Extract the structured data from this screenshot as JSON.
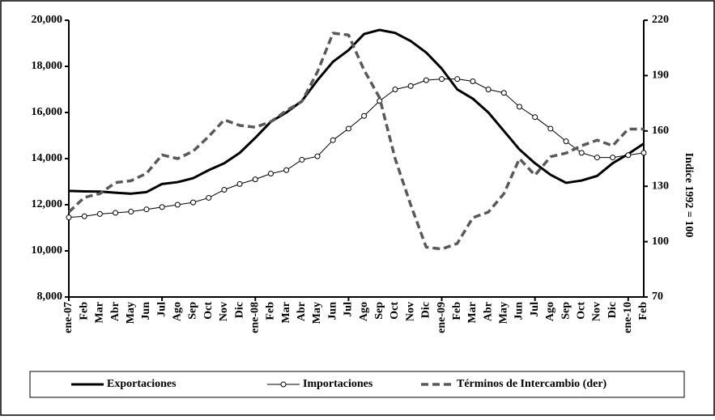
{
  "chart_data": {
    "type": "line",
    "categories": [
      "ene-07",
      "Feb",
      "Mar",
      "Abr",
      "May",
      "Jun",
      "Jul",
      "Ago",
      "Sep",
      "Oct",
      "Nov",
      "Dic",
      "ene-08",
      "Feb",
      "Mar",
      "Abr",
      "May",
      "Jun",
      "Jul",
      "Ago",
      "Sep",
      "Oct",
      "Nov",
      "Dic",
      "ene-09",
      "Feb",
      "Mar",
      "Abr",
      "May",
      "Jun",
      "Jul",
      "Ago",
      "Sep",
      "Oct",
      "Nov",
      "Dic",
      "ene-10",
      "Feb"
    ],
    "series": [
      {
        "name": "Exportaciones",
        "color": "#000000",
        "values": [
          12600,
          12580,
          12570,
          12520,
          12480,
          12550,
          12900,
          12980,
          13150,
          13500,
          13800,
          14250,
          14900,
          15600,
          16000,
          16500,
          17400,
          18200,
          18700,
          19400,
          19580,
          19450,
          19100,
          18600,
          17900,
          17000,
          16600,
          16000,
          15200,
          14400,
          13800,
          13300,
          12950,
          13050,
          13250,
          13800,
          14200,
          14650
        ]
      },
      {
        "name": "Importaciones",
        "color": "#000000",
        "values": [
          11450,
          11500,
          11600,
          11650,
          11700,
          11800,
          11900,
          12000,
          12100,
          12300,
          12650,
          12900,
          13100,
          13350,
          13500,
          13950,
          14100,
          14800,
          15300,
          15850,
          16500,
          17000,
          17150,
          17400,
          17450,
          17450,
          17350,
          17000,
          16850,
          16250,
          15800,
          15300,
          14750,
          14250,
          14050,
          14050,
          14150,
          14250
        ]
      },
      {
        "name": "Términos de Intercambio (der)",
        "color": "#595959",
        "axis": "y2",
        "values": [
          116,
          124,
          126,
          132,
          133,
          137,
          147,
          145,
          149,
          157,
          166,
          163,
          162,
          165,
          171,
          176,
          192,
          213,
          212,
          193,
          178,
          145,
          120,
          97,
          96,
          99,
          113,
          116,
          126,
          145,
          136,
          146,
          148,
          152,
          155,
          152,
          161,
          161
        ]
      }
    ],
    "ylim": [
      8000,
      20000
    ],
    "yticks": [
      {
        "value": 8000,
        "label": "8,000"
      },
      {
        "value": 10000,
        "label": "10,000"
      },
      {
        "value": 12000,
        "label": "12,000"
      },
      {
        "value": 14000,
        "label": "14,000"
      },
      {
        "value": 16000,
        "label": "16,000"
      },
      {
        "value": 18000,
        "label": "18,000"
      },
      {
        "value": 20000,
        "label": "20,000"
      }
    ],
    "y2lim": [
      70,
      220
    ],
    "y2ticks": [
      70,
      100,
      130,
      160,
      190,
      220
    ],
    "y2label": "Indice 1992 = 100"
  }
}
